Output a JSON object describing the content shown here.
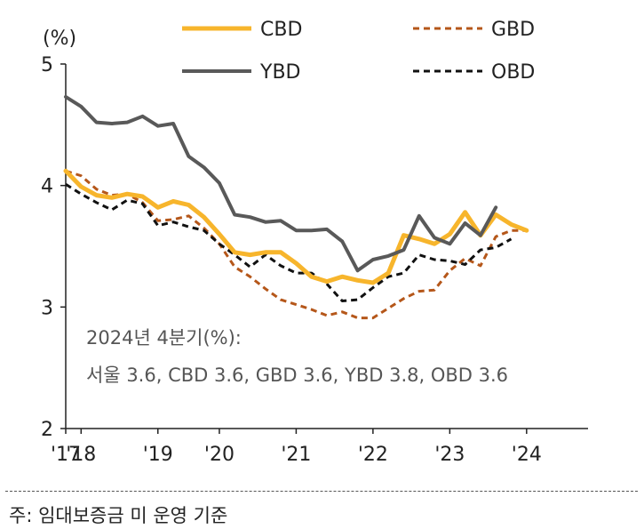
{
  "chart_data": {
    "type": "line",
    "ylabel": "(%)",
    "ylim": [
      2,
      5
    ],
    "yticks": [
      "2",
      "3",
      "4",
      "5"
    ],
    "xlim": [
      0,
      34
    ],
    "xticks": [
      {
        "label": "'17",
        "pos": 0
      },
      {
        "label": "'18",
        "pos": 1
      },
      {
        "label": "'19",
        "pos": 6
      },
      {
        "label": "'20",
        "pos": 10
      },
      {
        "label": "'21",
        "pos": 15
      },
      {
        "label": "'22",
        "pos": 20
      },
      {
        "label": "'23",
        "pos": 25
      },
      {
        "label": "'24",
        "pos": 30
      }
    ],
    "series": [
      {
        "name": "CBD",
        "color": "#f7b52c",
        "dash": "solid",
        "width": 5,
        "values": [
          4.12,
          3.99,
          3.92,
          3.9,
          3.93,
          3.91,
          3.82,
          3.87,
          3.84,
          3.74,
          3.6,
          3.45,
          3.43,
          3.45,
          3.45,
          3.36,
          3.25,
          3.21,
          3.25,
          3.22,
          3.2,
          3.28,
          3.59,
          3.56,
          3.52,
          3.6,
          3.78,
          3.59,
          3.76,
          3.68,
          3.63
        ]
      },
      {
        "name": "GBD",
        "color": "#b5571a",
        "dash": "7,5",
        "width": 3,
        "values": [
          4.12,
          4.08,
          3.97,
          3.92,
          3.93,
          3.86,
          3.71,
          3.72,
          3.75,
          3.65,
          3.52,
          3.33,
          3.25,
          3.15,
          3.06,
          3.02,
          2.98,
          2.93,
          2.96,
          2.91,
          2.91,
          2.99,
          3.07,
          3.13,
          3.14,
          3.3,
          3.4,
          3.34,
          3.58,
          3.63,
          3.63
        ]
      },
      {
        "name": "YBD",
        "color": "#595959",
        "dash": "solid",
        "width": 4,
        "values": [
          4.73,
          4.65,
          4.52,
          4.51,
          4.52,
          4.57,
          4.49,
          4.51,
          4.24,
          4.15,
          4.02,
          3.76,
          3.74,
          3.7,
          3.71,
          3.63,
          3.63,
          3.64,
          3.54,
          3.3,
          3.39,
          3.42,
          3.47,
          3.75,
          3.57,
          3.52,
          3.69,
          3.59,
          3.82
        ]
      },
      {
        "name": "OBD",
        "color": "#111111",
        "dash": "7,5",
        "width": 3,
        "values": [
          4.01,
          3.93,
          3.86,
          3.8,
          3.88,
          3.85,
          3.67,
          3.7,
          3.66,
          3.63,
          3.52,
          3.43,
          3.33,
          3.43,
          3.34,
          3.28,
          3.28,
          3.19,
          3.05,
          3.06,
          3.16,
          3.25,
          3.28,
          3.43,
          3.39,
          3.38,
          3.35,
          3.47,
          3.49,
          3.56
        ]
      }
    ],
    "annotation": {
      "line1": "2024년 4분기(%):",
      "line2": "서울 3.6, CBD 3.6, GBD 3.6, YBD 3.8, OBD 3.6"
    }
  },
  "footnote": "주: 임대보증금 미 운영 기준"
}
